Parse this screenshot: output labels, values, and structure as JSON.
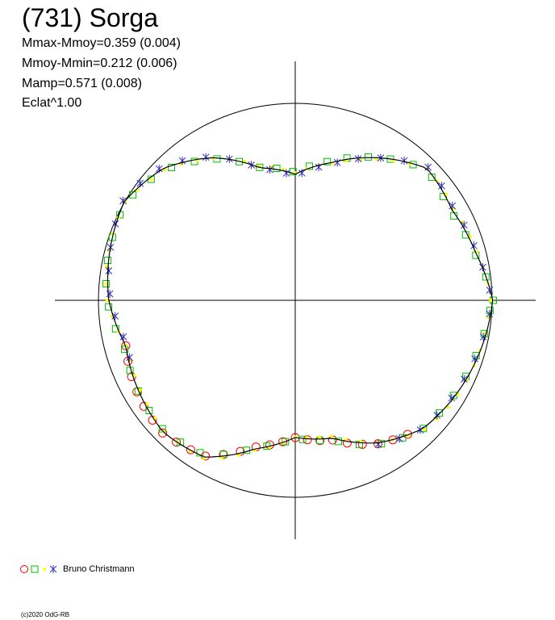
{
  "title": "(731) Sorga",
  "stats": [
    "Mmax-Mmoy=0.359 (0.004)",
    "Mmoy-Mmin=0.212 (0.006)",
    "Mamp=0.571 (0.008)",
    "Eclat^1.00"
  ],
  "legend": {
    "label": "Bruno Christmann"
  },
  "copyright": "(c)2020 OdG-RB",
  "colors": {
    "axis": "#000000",
    "curve": "#000000",
    "circle": "#000000",
    "red_marker": "#ff0000",
    "green_marker": "#00c000",
    "yellow_marker": "#ffff00",
    "blue_marker": "#3030c0"
  },
  "chart_data": {
    "type": "polar-lightcurve",
    "x_axis": "rotational phase (angle, deg)",
    "grid": false,
    "legend_position": "bottom-left",
    "reference_circle_magnitude": 0.359,
    "curve": {
      "angle_deg": [
        0,
        15,
        30,
        45,
        60,
        75,
        90,
        105,
        120,
        135,
        150,
        165,
        180,
        195,
        210,
        225,
        240,
        255,
        270,
        285,
        300,
        315,
        330,
        345,
        360
      ],
      "magnitude_offset": [
        0.36,
        0.34,
        0.33,
        0.34,
        0.3,
        0.26,
        0.23,
        0.25,
        0.3,
        0.34,
        0.36,
        0.35,
        0.34,
        0.32,
        0.33,
        0.34,
        0.33,
        0.28,
        0.25,
        0.26,
        0.3,
        0.33,
        0.34,
        0.35,
        0.36
      ]
    },
    "series": [
      {
        "marker": "circle",
        "color": "red",
        "angle_range_deg": [
          195,
          310
        ]
      },
      {
        "marker": "square",
        "color": "green",
        "angle_range_deg": [
          0,
          360
        ]
      },
      {
        "marker": "dot",
        "color": "yellow",
        "angle_range_deg": [
          0,
          360
        ]
      },
      {
        "marker": "star",
        "color": "blue",
        "angle_range_deg": [
          300,
          560
        ]
      }
    ]
  }
}
